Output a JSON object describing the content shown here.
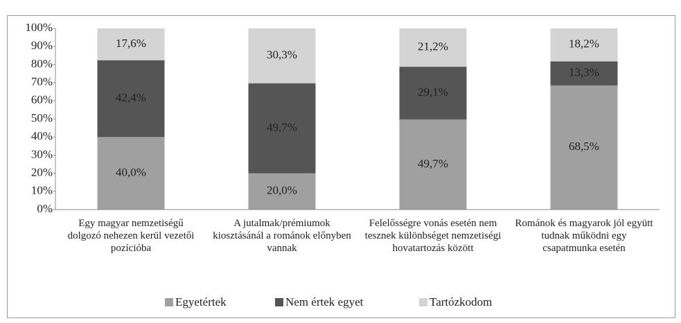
{
  "chart_data": {
    "type": "stacked_bar",
    "categories": [
      "Egy magyar nemzetiségű dolgozó nehezen kerül vezetői pozícióba",
      "A jutalmak/prémiumok kiosztásánál a románok előnyben vannak",
      "Felelősségre vonás esetén nem tesznek különbséget nemzetiségi hovatartozás között",
      "Románok és magyarok jól együtt tudnak működni egy csapatmunka esetén"
    ],
    "series": [
      {
        "name": "Egyetértek",
        "color": "#a0a0a0",
        "values": [
          40.0,
          20.0,
          49.7,
          68.5
        ],
        "value_labels": [
          "40,0%",
          "20,0%",
          "49,7%",
          "68,5%"
        ]
      },
      {
        "name": "Nem értek egyet",
        "color": "#555555",
        "values": [
          42.4,
          49.7,
          29.1,
          13.3
        ],
        "value_labels": [
          "42,4%",
          "49,7%",
          "29,1%",
          "13,3%"
        ]
      },
      {
        "name": "Tartózkodom",
        "color": "#d4d4d4",
        "values": [
          17.6,
          30.3,
          21.2,
          18.2
        ],
        "value_labels": [
          "17,6%",
          "30,3%",
          "21,2%",
          "18,2%"
        ]
      }
    ],
    "ylim": [
      0,
      100
    ],
    "yticks": [
      {
        "value": 0,
        "label": "0%"
      },
      {
        "value": 10,
        "label": "10%"
      },
      {
        "value": 20,
        "label": "20%"
      },
      {
        "value": 30,
        "label": "30%"
      },
      {
        "value": 40,
        "label": "40%"
      },
      {
        "value": 50,
        "label": "50%"
      },
      {
        "value": 60,
        "label": "60%"
      },
      {
        "value": 70,
        "label": "70%"
      },
      {
        "value": 80,
        "label": "80%"
      },
      {
        "value": 90,
        "label": "90%"
      },
      {
        "value": 100,
        "label": "100%"
      }
    ],
    "legend": "bottom"
  }
}
